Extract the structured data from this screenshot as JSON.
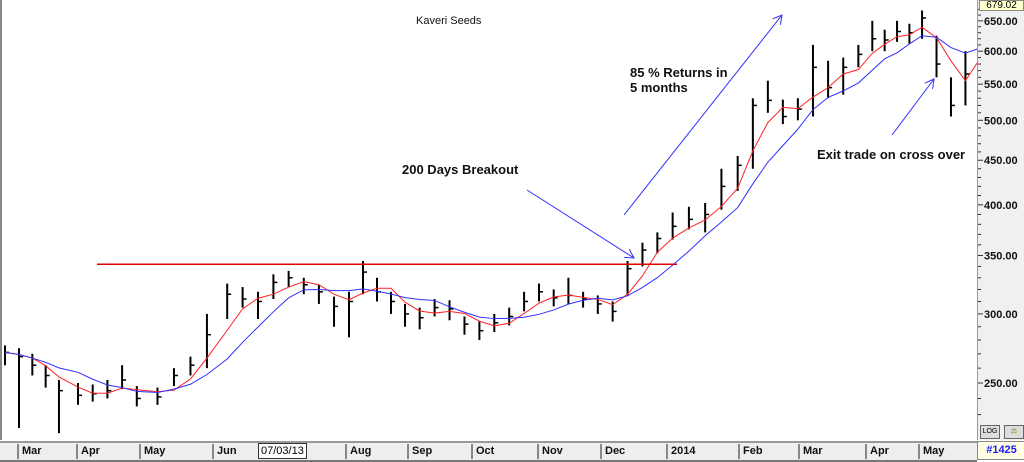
{
  "title": "Kaveri Seeds",
  "last_price": "679.02",
  "record_badge": "#1425",
  "cursor_date": "07/03/13",
  "buttons": {
    "log": "LOG",
    "compare": "cmp"
  },
  "x_labels": [
    "Mar",
    "Apr",
    "May",
    "Jun",
    "Aug",
    "Sep",
    "Oct",
    "Nov",
    "Dec",
    "2014",
    "Feb",
    "Mar",
    "Apr",
    "May"
  ],
  "annotations": {
    "breakout": "200 Days Breakout",
    "returns_line1": "85 % Returns in",
    "returns_line2": "5 months",
    "exit": "Exit trade on cross over"
  },
  "colors": {
    "bars": "#000000",
    "fast_ma": "#ff2020",
    "slow_ma": "#3030ff",
    "breakout_line": "#dd0000",
    "arrows": "#3030ff"
  },
  "chart_data": {
    "type": "ohlc-bar",
    "title": "Kaveri Seeds",
    "y_scale": "log",
    "ylim": [
      222,
      680
    ],
    "y_ticks": [
      250,
      300,
      350,
      400,
      450,
      500,
      550,
      600,
      650
    ],
    "grid": false,
    "breakout_level": 342,
    "moving_averages": [
      "fast (red)",
      "slow (blue)"
    ],
    "bars_columns": [
      "date",
      "high",
      "low",
      "close"
    ],
    "bars": [
      [
        "2013-02-22",
        276,
        262,
        271
      ],
      [
        "2013-03-01",
        274,
        222,
        268
      ],
      [
        "2013-03-08",
        270,
        255,
        262
      ],
      [
        "2013-03-15",
        262,
        247,
        255
      ],
      [
        "2013-03-22",
        252,
        219,
        245
      ],
      [
        "2013-04-01",
        250,
        236,
        242
      ],
      [
        "2013-04-08",
        249,
        238,
        243
      ],
      [
        "2013-04-15",
        252,
        240,
        245
      ],
      [
        "2013-04-22",
        262,
        246,
        252
      ],
      [
        "2013-04-29",
        248,
        235,
        240
      ],
      [
        "2013-05-08",
        247,
        236,
        241
      ],
      [
        "2013-05-15",
        260,
        248,
        255
      ],
      [
        "2013-05-22",
        268,
        255,
        262
      ],
      [
        "2013-05-29",
        300,
        260,
        284
      ],
      [
        "2013-06-07",
        325,
        296,
        316
      ],
      [
        "2013-06-14",
        322,
        305,
        312
      ],
      [
        "2013-06-21",
        318,
        296,
        310
      ],
      [
        "2013-06-28",
        333,
        312,
        326
      ],
      [
        "2013-07-05",
        336,
        322,
        330
      ],
      [
        "2013-07-12",
        330,
        316,
        324
      ],
      [
        "2013-07-19",
        324,
        308,
        318
      ],
      [
        "2013-07-26",
        314,
        290,
        306
      ],
      [
        "2013-08-02",
        318,
        282,
        310
      ],
      [
        "2013-08-09",
        345,
        316,
        335
      ],
      [
        "2013-08-16",
        330,
        310,
        318
      ],
      [
        "2013-08-23",
        318,
        300,
        310
      ],
      [
        "2013-08-30",
        308,
        290,
        300
      ],
      [
        "2013-09-06",
        305,
        288,
        297
      ],
      [
        "2013-09-13",
        312,
        298,
        305
      ],
      [
        "2013-09-20",
        311,
        295,
        304
      ],
      [
        "2013-09-27",
        298,
        284,
        292
      ],
      [
        "2013-10-04",
        294,
        280,
        287
      ],
      [
        "2013-10-11",
        300,
        286,
        293
      ],
      [
        "2013-10-18",
        305,
        291,
        298
      ],
      [
        "2013-10-25",
        318,
        302,
        310
      ],
      [
        "2013-11-01",
        325,
        310,
        318
      ],
      [
        "2013-11-08",
        320,
        306,
        313
      ],
      [
        "2013-11-15",
        330,
        308,
        315
      ],
      [
        "2013-11-22",
        318,
        305,
        312
      ],
      [
        "2013-11-29",
        315,
        300,
        308
      ],
      [
        "2013-12-06",
        310,
        294,
        302
      ],
      [
        "2013-12-13",
        345,
        315,
        338
      ],
      [
        "2013-12-20",
        362,
        340,
        355
      ],
      [
        "2013-12-27",
        372,
        352,
        366
      ],
      [
        "2014-01-03",
        392,
        365,
        378
      ],
      [
        "2014-01-10",
        398,
        375,
        385
      ],
      [
        "2014-01-17",
        402,
        372,
        390
      ],
      [
        "2014-01-24",
        440,
        395,
        420
      ],
      [
        "2014-01-31",
        455,
        415,
        444
      ],
      [
        "2014-02-07",
        530,
        440,
        520
      ],
      [
        "2014-02-14",
        555,
        510,
        527
      ],
      [
        "2014-02-21",
        528,
        495,
        505
      ],
      [
        "2014-02-28",
        530,
        500,
        515
      ],
      [
        "2014-03-07",
        610,
        505,
        575
      ],
      [
        "2014-03-14",
        585,
        530,
        545
      ],
      [
        "2014-03-21",
        590,
        535,
        575
      ],
      [
        "2014-03-28",
        610,
        575,
        595
      ],
      [
        "2014-04-04",
        650,
        600,
        620
      ],
      [
        "2014-04-11",
        635,
        600,
        618
      ],
      [
        "2014-04-18",
        650,
        615,
        632
      ],
      [
        "2014-04-25",
        645,
        612,
        630
      ],
      [
        "2014-05-02",
        668,
        620,
        655
      ],
      [
        "2014-05-09",
        625,
        560,
        580
      ],
      [
        "2014-05-16",
        560,
        505,
        520
      ],
      [
        "2014-05-23",
        600,
        520,
        565
      ],
      [
        "2014-05-30",
        682,
        600,
        679.02
      ]
    ]
  }
}
